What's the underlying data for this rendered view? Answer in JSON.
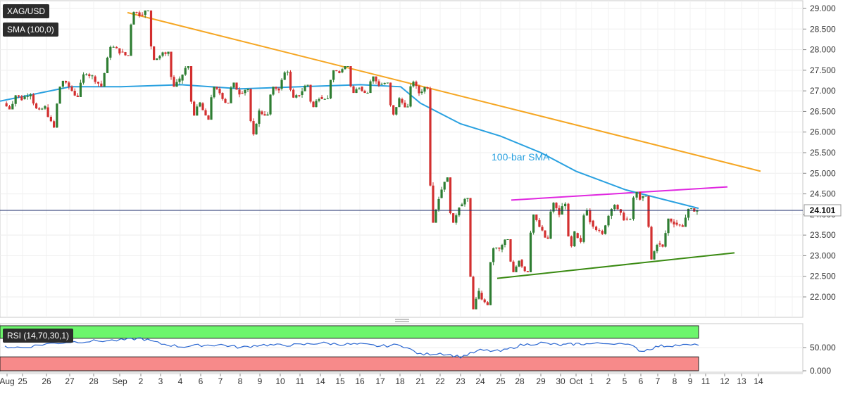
{
  "symbol_label": "XAG/USD",
  "sma_label": "SMA (100,0)",
  "rsi_label": "RSI (14,70,30,1)",
  "annotation_sma": "100-bar SMA",
  "last_price_label": "24.101",
  "colors": {
    "bull": "#2e7d32",
    "bear": "#d32f2f",
    "sma": "#2aa1e0",
    "resistance_trend": "#f5a623",
    "upper_channel": "#e028e0",
    "lower_channel": "#3a8a12",
    "rsi_line": "#2b67d1",
    "rsi_over": "#6cf66c",
    "rsi_under": "#f78a8a",
    "price_line": "#1a2a6a"
  },
  "chart_data": [
    {
      "type": "candlestick",
      "title": "XAG/USD",
      "x_tick_labels": [
        "Aug",
        "25",
        "26",
        "27",
        "28",
        "Sep",
        "2",
        "3",
        "4",
        "6",
        "7",
        "8",
        "9",
        "10",
        "11",
        "14",
        "15",
        "16",
        "17",
        "18",
        "21",
        "22",
        "23",
        "24",
        "25",
        "28",
        "29",
        "30",
        "Oct",
        "1",
        "2",
        "5",
        "6",
        "7",
        "8",
        "9",
        "11",
        "12",
        "13",
        "14"
      ],
      "y_tick_labels": [
        "22.000",
        "22.500",
        "23.000",
        "23.500",
        "24.000",
        "24.500",
        "25.000",
        "25.500",
        "26.000",
        "26.500",
        "27.000",
        "27.500",
        "28.000",
        "28.500",
        "29.000"
      ],
      "ylim": [
        21.6,
        29.15
      ],
      "grid": true,
      "last_price": 24.101,
      "sessions": [
        "Aug 24",
        "Aug 25",
        "Aug 26",
        "Aug 27",
        "Aug 28",
        "Aug 31",
        "Sep 1",
        "Sep 2",
        "Sep 3",
        "Sep 4",
        "Sep 7",
        "Sep 8",
        "Sep 9",
        "Sep 10",
        "Sep 11",
        "Sep 14",
        "Sep 15",
        "Sep 16",
        "Sep 17",
        "Sep 18",
        "Sep 21",
        "Sep 22",
        "Sep 23",
        "Sep 24",
        "Sep 25",
        "Sep 28",
        "Sep 29",
        "Sep 30",
        "Oct 1",
        "Oct 2",
        "Oct 5",
        "Oct 6",
        "Oct 7",
        "Oct 8"
      ],
      "session_ohlc": [
        [
          26.7,
          26.9,
          26.55,
          26.8
        ],
        [
          26.8,
          26.95,
          26.5,
          26.6
        ],
        [
          26.6,
          27.25,
          26.1,
          27.1
        ],
        [
          27.1,
          27.45,
          26.85,
          27.35
        ],
        [
          27.35,
          28.1,
          27.1,
          27.95
        ],
        [
          27.95,
          28.95,
          27.85,
          28.85
        ],
        [
          28.85,
          28.95,
          27.75,
          27.85
        ],
        [
          27.85,
          27.95,
          27.1,
          27.25
        ],
        [
          27.25,
          27.6,
          26.4,
          26.7
        ],
        [
          26.7,
          27.1,
          26.3,
          26.95
        ],
        [
          26.95,
          27.2,
          26.7,
          26.95
        ],
        [
          26.95,
          27.05,
          25.9,
          26.5
        ],
        [
          26.5,
          27.1,
          26.4,
          27.05
        ],
        [
          27.05,
          27.5,
          26.8,
          26.9
        ],
        [
          26.9,
          27.15,
          26.6,
          26.85
        ],
        [
          26.85,
          27.5,
          26.8,
          27.45
        ],
        [
          27.45,
          27.6,
          26.95,
          27.1
        ],
        [
          27.1,
          27.35,
          26.95,
          27.15
        ],
        [
          27.15,
          27.2,
          26.4,
          26.8
        ],
        [
          26.8,
          27.25,
          26.6,
          26.95
        ],
        [
          26.95,
          27.1,
          23.8,
          24.4
        ],
        [
          24.4,
          24.9,
          23.75,
          24.2
        ],
        [
          24.2,
          24.4,
          21.7,
          22.1
        ],
        [
          22.1,
          23.2,
          21.8,
          23.15
        ],
        [
          23.15,
          23.4,
          22.6,
          22.9
        ],
        [
          22.9,
          24.0,
          22.6,
          23.7
        ],
        [
          23.7,
          24.3,
          23.4,
          24.0
        ],
        [
          24.0,
          24.3,
          23.2,
          23.55
        ],
        [
          23.55,
          24.15,
          23.3,
          23.85
        ],
        [
          23.85,
          24.25,
          23.5,
          23.9
        ],
        [
          23.9,
          24.55,
          23.85,
          24.4
        ],
        [
          24.4,
          24.45,
          22.9,
          23.3
        ],
        [
          23.3,
          23.9,
          23.2,
          23.8
        ],
        [
          23.8,
          24.15,
          23.7,
          24.1
        ]
      ],
      "sma_100": [
        {
          "x": "Aug 24",
          "y": 26.75
        },
        {
          "x": "Aug 27",
          "y": 27.1
        },
        {
          "x": "Aug 31",
          "y": 27.1
        },
        {
          "x": "Sep 3",
          "y": 27.15
        },
        {
          "x": "Sep 8",
          "y": 27.05
        },
        {
          "x": "Sep 11",
          "y": 27.1
        },
        {
          "x": "Sep 16",
          "y": 27.15
        },
        {
          "x": "Sep 18",
          "y": 27.1
        },
        {
          "x": "Sep 21",
          "y": 26.7
        },
        {
          "x": "Sep 23",
          "y": 26.2
        },
        {
          "x": "Sep 25",
          "y": 25.9
        },
        {
          "x": "Sep 29",
          "y": 25.5
        },
        {
          "x": "Oct 1",
          "y": 25.05
        },
        {
          "x": "Oct 5",
          "y": 24.6
        },
        {
          "x": "Oct 8",
          "y": 24.15
        }
      ],
      "trendlines": [
        {
          "role": "resistance",
          "from": {
            "x": "Aug 31",
            "y": 28.9
          },
          "to": {
            "x": "Oct 13",
            "y": 25.05
          }
        },
        {
          "role": "upper-channel",
          "from": {
            "x": "Sep 25",
            "y": 24.35
          },
          "to": {
            "x": "Oct 11",
            "y": 24.67
          }
        },
        {
          "role": "lower-channel",
          "from": {
            "x": "Sep 24",
            "y": 22.45
          },
          "to": {
            "x": "Oct 11",
            "y": 23.07
          }
        }
      ]
    },
    {
      "type": "line",
      "title": "RSI (14,70,30,1)",
      "y_tick_labels": [
        "0.000",
        "50.000"
      ],
      "ylim": [
        0,
        100
      ],
      "overbought": 70,
      "oversold": 30,
      "values": [
        52,
        50,
        58,
        62,
        64,
        66,
        70,
        58,
        52,
        55,
        56,
        50,
        56,
        55,
        56,
        60,
        57,
        57,
        53,
        56,
        35,
        38,
        30,
        44,
        42,
        55,
        60,
        55,
        58,
        58,
        60,
        42,
        53,
        55
      ]
    }
  ]
}
